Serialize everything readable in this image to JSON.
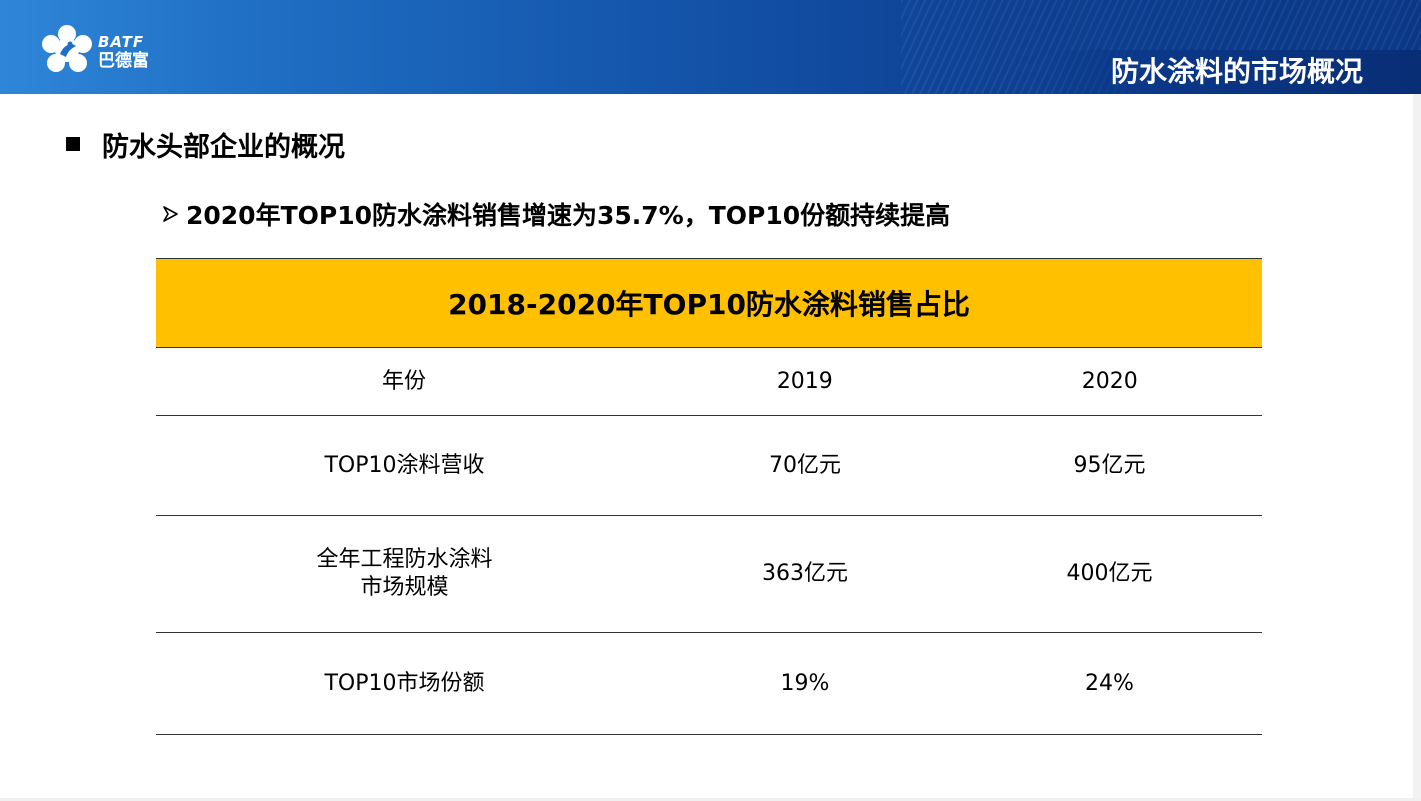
{
  "header": {
    "logo_brand": "BATF",
    "logo_name": "巴德富",
    "page_title": "防水涂料的市场概况",
    "colors": {
      "banner_light": "#2f86d8",
      "banner_dark": "#0b3787"
    }
  },
  "content": {
    "section_heading": "防水头部企业的概况",
    "sub_heading": "2020年TOP10防水涂料销售增速为35.7%，TOP10份额持续提高",
    "table": {
      "caption": "2018-2020年TOP10防水涂料销售占比",
      "header_color": "#ffc000",
      "columns": [
        "年份",
        "2019",
        "2020"
      ],
      "rows": [
        {
          "label": "TOP10涂料营收",
          "y2019": "70亿元",
          "y2020": "95亿元"
        },
        {
          "label_line1": "全年工程防水涂料",
          "label_line2": "市场规模",
          "y2019": "363亿元",
          "y2020": "400亿元"
        },
        {
          "label": "TOP10市场份额",
          "y2019": "19%",
          "y2020": "24%"
        }
      ]
    }
  }
}
